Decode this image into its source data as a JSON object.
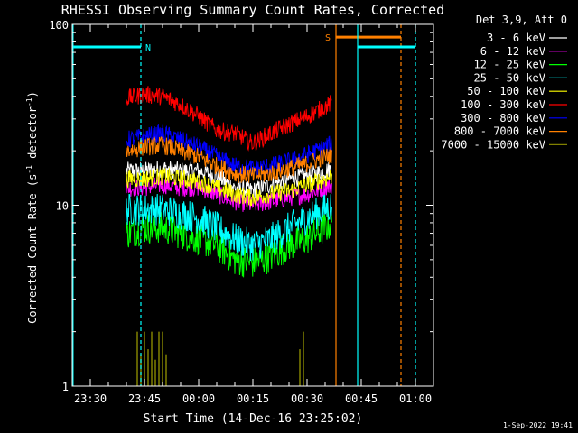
{
  "chart_data": {
    "type": "line",
    "title": "RHESSI Observing Summary Count Rates, Corrected",
    "xlabel": "Start Time (14-Dec-16 23:25:02)",
    "ylabel": "Corrected Count Rate (s⁻¹ detector⁻¹)",
    "ylabel_base": "Corrected Count Rate (s",
    "ylabel_exp1": "-1",
    "ylabel_mid": " detector",
    "ylabel_exp2": "-1",
    "ylabel_end": ")",
    "y_scale": "log",
    "xlim": [
      "23:25",
      "01:05"
    ],
    "ylim": [
      1,
      100
    ],
    "x_ticks": [
      "23:30",
      "23:45",
      "00:00",
      "00:15",
      "00:30",
      "00:45",
      "01:00"
    ],
    "y_ticks": [
      "1",
      "10",
      "100"
    ],
    "legend_title": "Det 3,9, Att 0",
    "legend_placement": "right",
    "footer_date": "1-Sep-2022 19:41",
    "series": [
      {
        "name": "3 - 6 keV",
        "color": "#ffffff",
        "x": [
          "23:40",
          "23:45",
          "23:50",
          "23:55",
          "00:00",
          "00:05",
          "00:10",
          "00:15",
          "00:20",
          "00:25",
          "00:30",
          "00:35",
          "00:37"
        ],
        "values": [
          15.5,
          15.5,
          16,
          15.5,
          15.5,
          14.5,
          12.5,
          12,
          13,
          14,
          14.5,
          15.5,
          16
        ]
      },
      {
        "name": "6 - 12 keV",
        "color": "#ff00ff",
        "x": [
          "23:40",
          "23:45",
          "23:50",
          "23:55",
          "00:00",
          "00:05",
          "00:10",
          "00:15",
          "00:20",
          "00:25",
          "00:30",
          "00:35",
          "00:37"
        ],
        "values": [
          12.5,
          12.5,
          13,
          12.5,
          12.5,
          11.5,
          10.5,
          10,
          10.5,
          11,
          11.5,
          12.5,
          13
        ]
      },
      {
        "name": "12 - 25 keV",
        "color": "#00ff00",
        "x": [
          "23:40",
          "23:45",
          "23:50",
          "23:55",
          "00:00",
          "00:05",
          "00:10",
          "00:15",
          "00:20",
          "00:25",
          "00:30",
          "00:35",
          "00:37"
        ],
        "values": [
          7,
          7.5,
          7.5,
          7,
          6.5,
          6,
          5,
          4.8,
          5.2,
          6,
          6.5,
          7.5,
          8
        ]
      },
      {
        "name": "25 - 50 keV",
        "color": "#00ffff",
        "x": [
          "23:40",
          "23:45",
          "23:50",
          "23:55",
          "00:00",
          "00:05",
          "00:10",
          "00:15",
          "00:20",
          "00:25",
          "00:30",
          "00:35",
          "00:37"
        ],
        "values": [
          9.5,
          9.5,
          9.5,
          9,
          8.5,
          7.5,
          6.5,
          6,
          6.5,
          7.5,
          8.5,
          9.5,
          10
        ]
      },
      {
        "name": "50 - 100 keV",
        "color": "#ffff00",
        "x": [
          "23:40",
          "23:45",
          "23:50",
          "23:55",
          "00:00",
          "00:05",
          "00:10",
          "00:15",
          "00:20",
          "00:25",
          "00:30",
          "00:35",
          "00:37"
        ],
        "values": [
          14,
          14,
          14.5,
          14,
          13.5,
          12.5,
          11.5,
          11,
          11.5,
          12,
          13,
          14,
          14.5
        ]
      },
      {
        "name": "100 - 300 keV",
        "color": "#ff0000",
        "x": [
          "23:40",
          "23:45",
          "23:50",
          "23:55",
          "00:00",
          "00:05",
          "00:10",
          "00:15",
          "00:20",
          "00:25",
          "00:30",
          "00:35",
          "00:37"
        ],
        "values": [
          39,
          41,
          40,
          36,
          31,
          26,
          25,
          22,
          25,
          28,
          31,
          35,
          37
        ]
      },
      {
        "name": "300 - 800 keV",
        "color": "#0000ff",
        "x": [
          "23:40",
          "23:45",
          "23:50",
          "23:55",
          "00:00",
          "00:05",
          "00:10",
          "00:15",
          "00:20",
          "00:25",
          "00:30",
          "00:35",
          "00:37"
        ],
        "values": [
          23,
          24,
          25,
          23,
          21,
          18.5,
          16.5,
          16,
          16.5,
          17.5,
          19,
          21,
          22
        ]
      },
      {
        "name": "800 - 7000 keV",
        "color": "#ff8000",
        "x": [
          "23:40",
          "23:45",
          "23:50",
          "23:55",
          "00:00",
          "00:05",
          "00:10",
          "00:15",
          "00:20",
          "00:25",
          "00:30",
          "00:35",
          "00:37"
        ],
        "values": [
          20,
          21,
          21.5,
          20,
          18.5,
          16.5,
          15,
          14.5,
          15,
          16,
          17,
          18.5,
          19
        ]
      },
      {
        "name": "7000 - 15000 keV",
        "color": "#808000",
        "x": [
          "23:40",
          "23:45",
          "23:50",
          "23:55",
          "00:00",
          "00:05",
          "00:10",
          "00:15",
          "00:20",
          "00:25",
          "00:30",
          "00:35",
          "00:37"
        ],
        "values": [
          1,
          1,
          1,
          1,
          1,
          1,
          1,
          1,
          1,
          1,
          1,
          1,
          1
        ],
        "spikes": [
          {
            "x": "23:43",
            "y": 2.0
          },
          {
            "x": "23:44",
            "y": 1.5
          },
          {
            "x": "23:45",
            "y": 2.0
          },
          {
            "x": "23:46",
            "y": 1.6
          },
          {
            "x": "23:47",
            "y": 2.0
          },
          {
            "x": "23:48",
            "y": 1.4
          },
          {
            "x": "23:49",
            "y": 2.0
          },
          {
            "x": "23:50",
            "y": 2.0
          },
          {
            "x": "23:51",
            "y": 1.5
          },
          {
            "x": "00:28",
            "y": 1.6
          },
          {
            "x": "00:29",
            "y": 2.0
          }
        ]
      }
    ],
    "annotations": [
      {
        "label": "N",
        "color": "#00ffff",
        "bar_start": "23:25",
        "bar_end": "23:44",
        "bar_y": 75,
        "line_x": "23:44",
        "line_style": "dashed"
      },
      {
        "label": "S",
        "color": "#ff8000",
        "bar_start": "00:38",
        "bar_end": "00:56",
        "bar_y": 85,
        "line_x": "00:38",
        "line_style": "solid",
        "end_x": "00:56",
        "end_style": "dashed"
      },
      {
        "label": "",
        "color": "#00ffff",
        "bar_start": "00:44",
        "bar_end": "01:00",
        "bar_y": 75,
        "line_x": "00:44",
        "line_style": "solid",
        "end_x": "01:00",
        "end_style": "dashed"
      }
    ]
  }
}
